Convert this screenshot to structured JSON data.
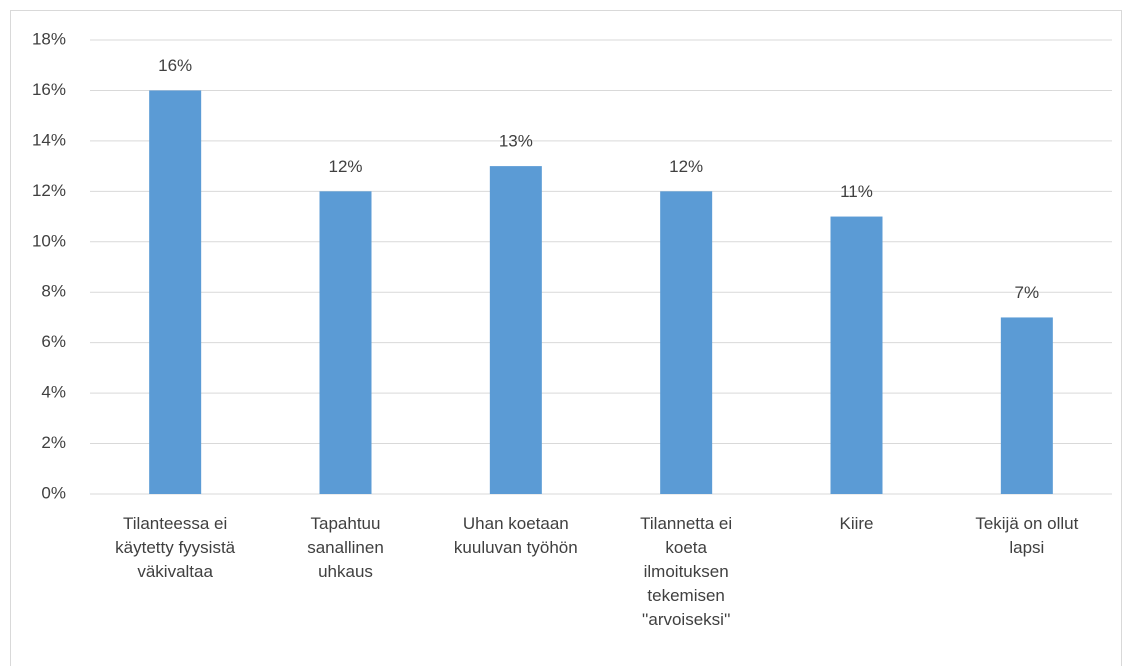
{
  "chart_data": {
    "type": "bar",
    "categories": [
      "Tilanteessa ei\nkäytetty fyysistä\nväkivaltaa",
      "Tapahtuu\nsanallinen\nuhkaus",
      "Uhan koetaan\nkuuluvan työhön",
      "Tilannetta ei\nkoeta\nilmoituksen\ntekemisen\n''arvoiseksi''",
      "Kiire",
      "Tekijä on ollut\nlapsi"
    ],
    "values": [
      16,
      12,
      13,
      12,
      11,
      7
    ],
    "value_labels": [
      "16%",
      "12%",
      "13%",
      "12%",
      "11%",
      "7%"
    ],
    "color": "#5b9bd5",
    "ylim": [
      0,
      18
    ],
    "yticks": [
      {
        "value": 0,
        "label": "0%"
      },
      {
        "value": 2,
        "label": "2%"
      },
      {
        "value": 4,
        "label": "4%"
      },
      {
        "value": 6,
        "label": "6%"
      },
      {
        "value": 8,
        "label": "8%"
      },
      {
        "value": 10,
        "label": "10%"
      },
      {
        "value": 12,
        "label": "12%"
      },
      {
        "value": 14,
        "label": "14%"
      },
      {
        "value": 16,
        "label": "16%"
      },
      {
        "value": 18,
        "label": "18%"
      }
    ],
    "grid": true
  }
}
